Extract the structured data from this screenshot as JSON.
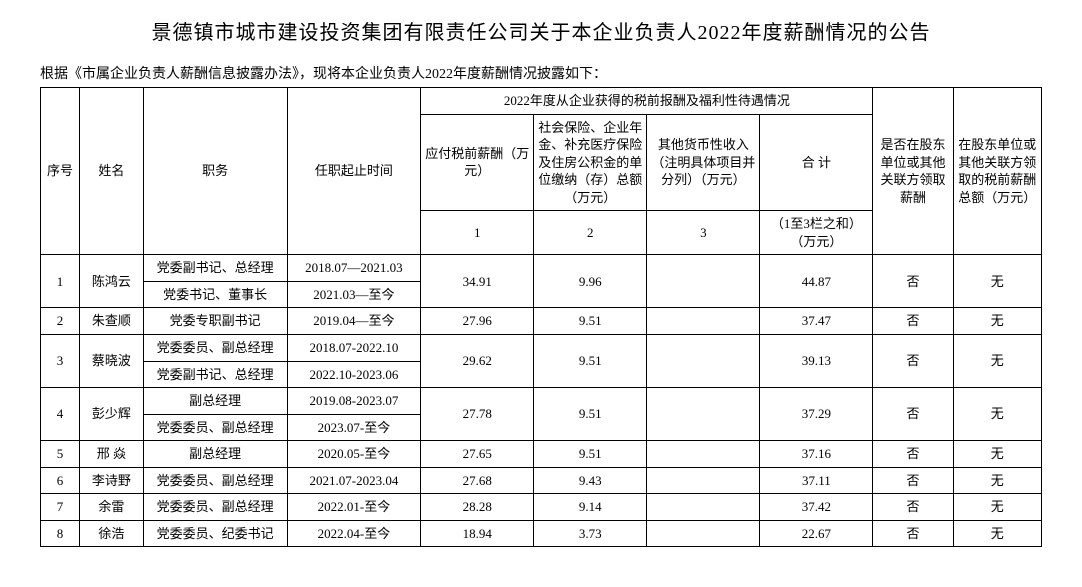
{
  "title": "景德镇市城市建设投资集团有限责任公司关于本企业负责人2022年度薪酬情况的公告",
  "preamble": "根据《市属企业负责人薪酬信息披露办法》，现将本企业负责人2022年度薪酬情况披露如下：",
  "head": {
    "seq": "序号",
    "name": "姓名",
    "position": "职务",
    "term": "任职起止时间",
    "group22": "2022年度从企业获得的税前报酬及福利性待遇情况",
    "pretax": "应付税前薪酬（万元）",
    "social": "社会保险、企业年金、补充医疗保险及住房公积金的单位缴纳（存）总额（万元）",
    "other": "其他货币性收入（注明具体项目并分列）（万元）",
    "total": "合  计",
    "c1": "1",
    "c2": "2",
    "c3": "3",
    "csum": "（1至3栏之和）（万元）",
    "shareholder": "是否在股东单位或其他关联方领取薪酬",
    "shareholder_amt": "在股东单位或其他关联方领取的税前薪酬总额（万元）"
  },
  "rows": {
    "r1": {
      "seq": "1",
      "name": "陈鸿云",
      "pos_a": "党委副书记、总经理",
      "term_a": "2018.07—2021.03",
      "pos_b": "党委书记、董事长",
      "term_b": "2021.03—至今",
      "v1": "34.91",
      "v2": "9.96",
      "v3": "",
      "sum": "44.87",
      "sh": "否",
      "sha": "无"
    },
    "r2": {
      "seq": "2",
      "name": "朱查顺",
      "pos": "党委专职副书记",
      "term": "2019.04—至今",
      "v1": "27.96",
      "v2": "9.51",
      "v3": "",
      "sum": "37.47",
      "sh": "否",
      "sha": "无"
    },
    "r3": {
      "seq": "3",
      "name": "蔡晓波",
      "pos_a": "党委委员、副总经理",
      "term_a": "2018.07-2022.10",
      "pos_b": "党委副书记、总经理",
      "term_b": "2022.10-2023.06",
      "v1": "29.62",
      "v2": "9.51",
      "v3": "",
      "sum": "39.13",
      "sh": "否",
      "sha": "无"
    },
    "r4": {
      "seq": "4",
      "name": "彭少辉",
      "pos_a": "副总经理",
      "term_a": "2019.08-2023.07",
      "pos_b": "党委委员、副总经理",
      "term_b": "2023.07-至今",
      "v1": "27.78",
      "v2": "9.51",
      "v3": "",
      "sum": "37.29",
      "sh": "否",
      "sha": "无"
    },
    "r5": {
      "seq": "5",
      "name": "邢  焱",
      "pos": "副总经理",
      "term": "2020.05-至今",
      "v1": "27.65",
      "v2": "9.51",
      "v3": "",
      "sum": "37.16",
      "sh": "否",
      "sha": "无"
    },
    "r6": {
      "seq": "6",
      "name": "李诗野",
      "pos": "党委委员、副总经理",
      "term": "2021.07-2023.04",
      "v1": "27.68",
      "v2": "9.43",
      "v3": "",
      "sum": "37.11",
      "sh": "否",
      "sha": "无"
    },
    "r7": {
      "seq": "7",
      "name": "余雷",
      "pos": "党委委员、副总经理",
      "term": "2022.01-至今",
      "v1": "28.28",
      "v2": "9.14",
      "v3": "",
      "sum": "37.42",
      "sh": "否",
      "sha": "无"
    },
    "r8": {
      "seq": "8",
      "name": "徐浩",
      "pos": "党委委员、纪委书记",
      "term": "2022.04-至今",
      "v1": "18.94",
      "v2": "3.73",
      "v3": "",
      "sum": "22.67",
      "sh": "否",
      "sha": "无"
    }
  }
}
